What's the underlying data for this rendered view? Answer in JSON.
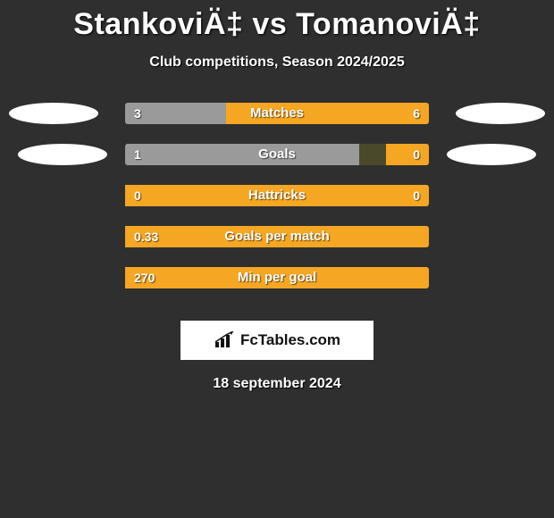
{
  "title": "StankoviÄ‡ vs TomanoviÄ‡",
  "subtitle": "Club competitions, Season 2024/2025",
  "date": "18 september 2024",
  "brand": "FcTables.com",
  "colors": {
    "background": "#2f2f2f",
    "left_player": "#9a9a9a",
    "right_player": "#f5a623",
    "track": "#4a4a2a",
    "ellipse": "#ffffff",
    "text": "#ffffff"
  },
  "stats": [
    {
      "label": "Matches",
      "left_value": "3",
      "right_value": "6",
      "left_pct": 33.3,
      "right_pct": 66.7,
      "left_color": "#9a9a9a",
      "right_color": "#f5a623",
      "show_side_ellipses": true,
      "side_ellipse_style": "solid"
    },
    {
      "label": "Goals",
      "left_value": "1",
      "right_value": "0",
      "left_pct": 77,
      "right_pct": 14,
      "left_color": "#9a9a9a",
      "right_color": "#f5a623",
      "show_side_ellipses": true,
      "side_ellipse_style": "hollowish"
    },
    {
      "label": "Hattricks",
      "left_value": "0",
      "right_value": "0",
      "left_pct": 0,
      "right_pct": 100,
      "left_color": "#9a9a9a",
      "right_color": "#f5a623",
      "show_side_ellipses": false
    },
    {
      "label": "Goals per match",
      "left_value": "0.33",
      "right_value": "",
      "left_pct": 0,
      "right_pct": 100,
      "left_color": "#9a9a9a",
      "right_color": "#f5a623",
      "show_side_ellipses": false
    },
    {
      "label": "Min per goal",
      "left_value": "270",
      "right_value": "",
      "left_pct": 0,
      "right_pct": 100,
      "left_color": "#9a9a9a",
      "right_color": "#f5a623",
      "show_side_ellipses": false
    }
  ]
}
